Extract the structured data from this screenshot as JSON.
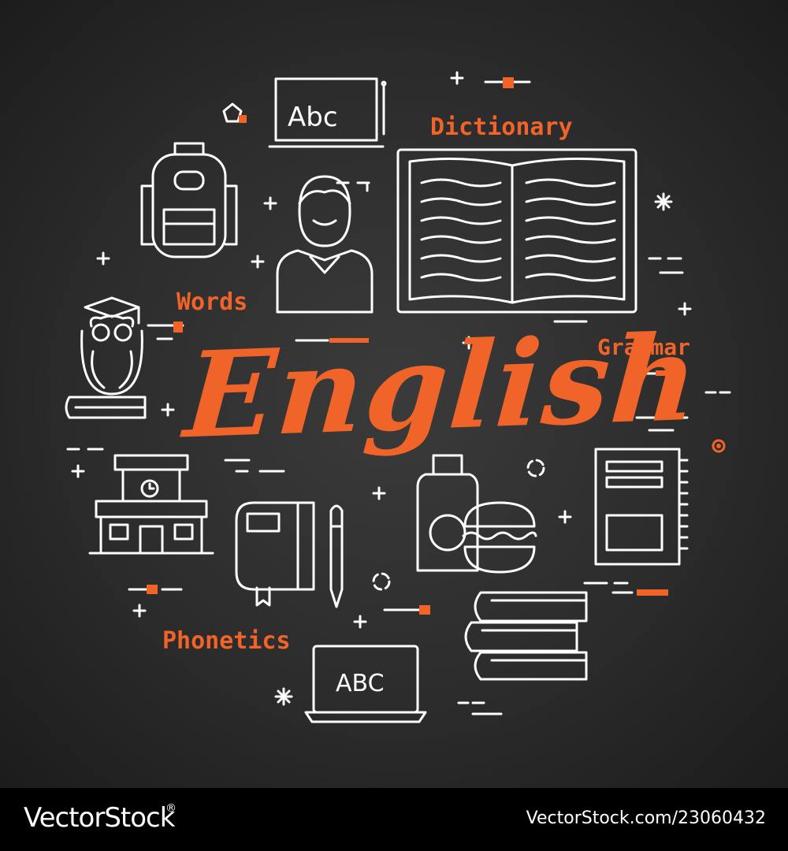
{
  "title": "English",
  "labels": {
    "dictionary": "Dictionary",
    "grammar": "Grammar",
    "words": "Words",
    "phonetics": "Phonetics"
  },
  "chalkboard_top_text": "Abc",
  "laptop_text": "ABC",
  "footer": {
    "brand": "VectorStock",
    "brand_mark": "®",
    "url": "VectorStock.com/23060432"
  },
  "colors": {
    "accent": "#f0642a",
    "board": "#2e2e2e",
    "line": "#ffffff",
    "footer": "#000000"
  },
  "icons": [
    "chalkboard-icon",
    "open-book-icon",
    "backpack-icon",
    "student-icon",
    "owl-icon",
    "school-building-icon",
    "notebook-icon",
    "pen-icon",
    "lunch-icon",
    "spiral-notebook-icon",
    "book-stack-icon",
    "laptop-icon"
  ]
}
